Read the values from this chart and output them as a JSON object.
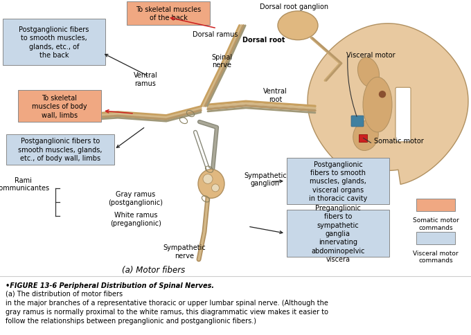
{
  "background_color": "#ffffff",
  "sc_outer_color": "#e8c9a0",
  "sc_inner_color": "#d4a870",
  "nerve_tan": "#c8a060",
  "nerve_gray": "#a09878",
  "nerve_blue": "#6090a8",
  "nerve_dark": "#8a7858",
  "ganglion_color": "#e0b880",
  "blue_box": "#c8d8e8",
  "orange_box": "#f0a882",
  "red_sq": "#cc2020",
  "blue_dot": "#4080a0",
  "brown_dot": "#8a5030",
  "label_fs": 7.0,
  "fig_label": "(a) Motor fibers",
  "caption_bold": "•FIGURE 13-6 Peripheral Distribution of Spinal Nerves.",
  "caption_rest": " (a) The distribution of motor fibers\nin the major branches of a representative thoracic or upper lumbar spinal nerve. (Although the\ngray ramus is normally proximal to the white ramus, this diagrammatic view makes it easier to\nfollow the relationships between preganglionic and postganglionic fibers.)"
}
